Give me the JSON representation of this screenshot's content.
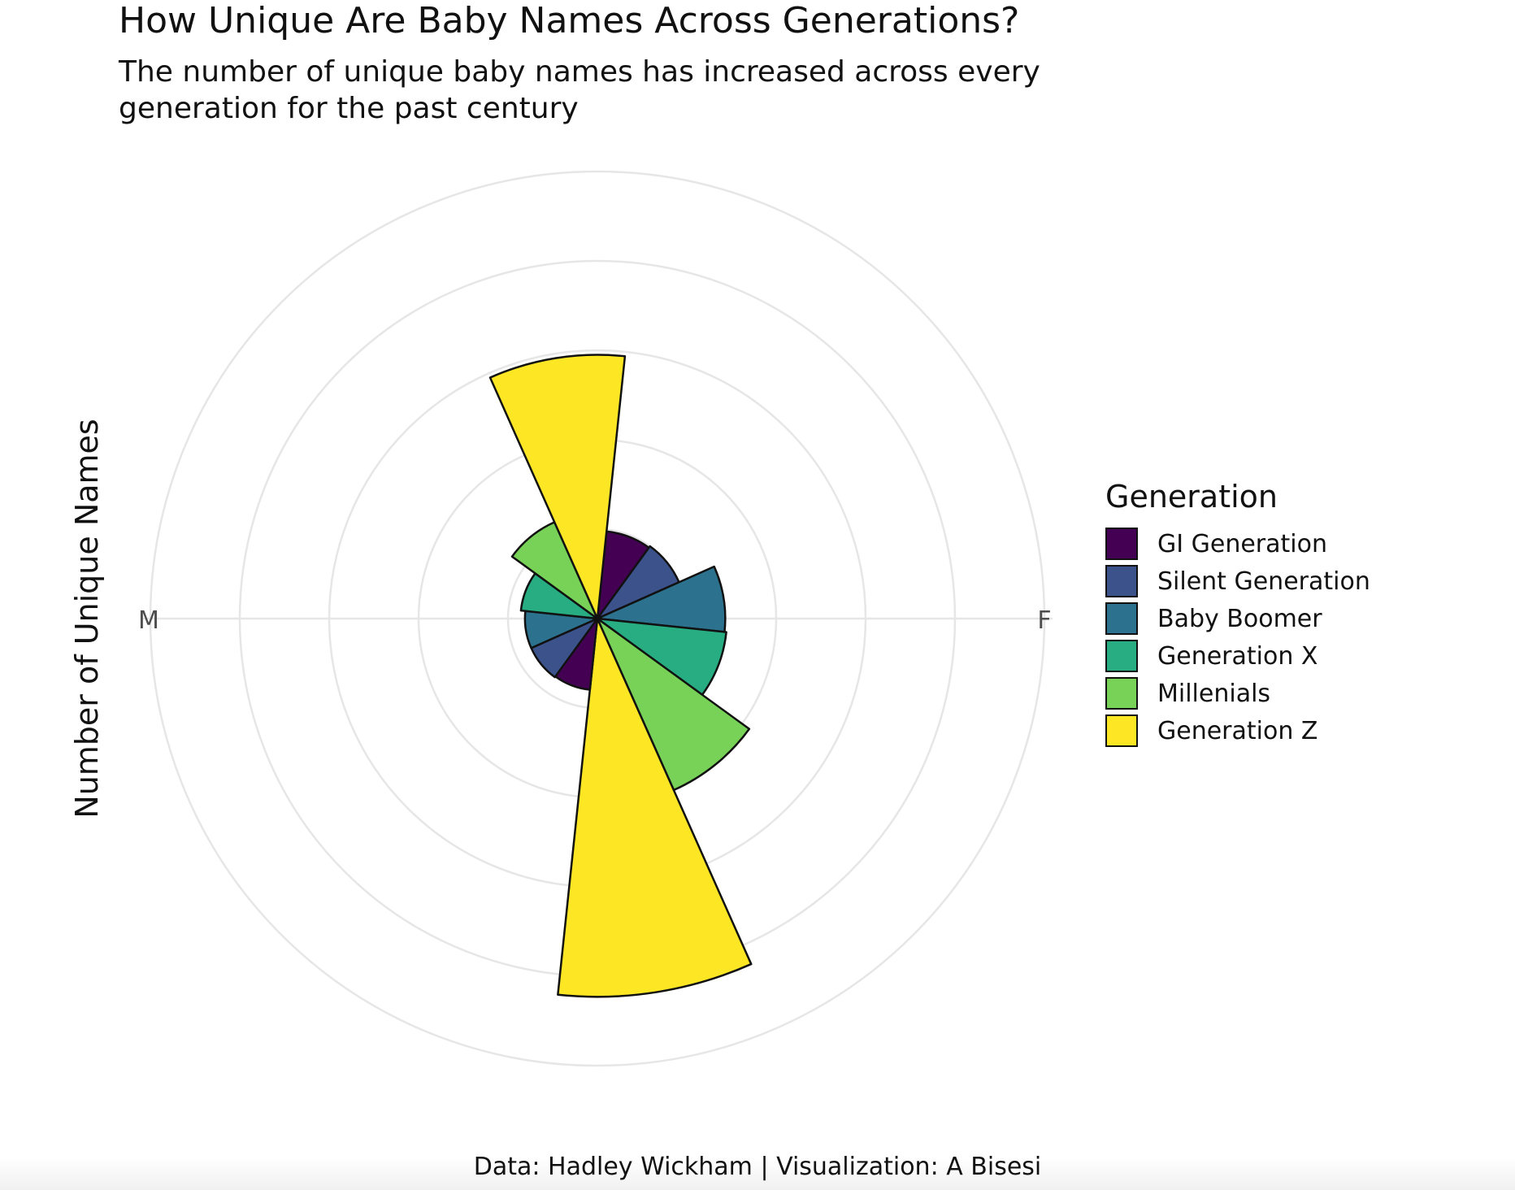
{
  "title": "How Unique Are Baby Names Across Generations?",
  "subtitle": "The number of unique baby names has increased across every generation for the past century",
  "caption": "Data: Hadley Wickham | Visualization: A Bisesi",
  "chart_data": {
    "type": "bar",
    "coord": "polar",
    "categories": [
      "F",
      "M"
    ],
    "xlabel": "",
    "ylabel": "Number of Unique Names",
    "grid": true,
    "legend_position": "right",
    "legend_title": "Generation",
    "series": [
      {
        "name": "GI Generation",
        "color": "#440154",
        "values": [
          0.98,
          0.8
        ]
      },
      {
        "name": "Silent Generation",
        "color": "#3B528B",
        "values": [
          1.0,
          0.81
        ]
      },
      {
        "name": "Baby Boomer",
        "color": "#2C728E",
        "values": [
          1.43,
          0.81
        ]
      },
      {
        "name": "Generation X",
        "color": "#27AD81",
        "values": [
          1.45,
          0.86
        ]
      },
      {
        "name": "Millenials",
        "color": "#77D257",
        "values": [
          2.1,
          1.18
        ]
      },
      {
        "name": "Generation Z",
        "color": "#FDE725",
        "values": [
          4.23,
          2.95
        ]
      }
    ],
    "gridlines": [
      1,
      2,
      3,
      4,
      5
    ]
  }
}
